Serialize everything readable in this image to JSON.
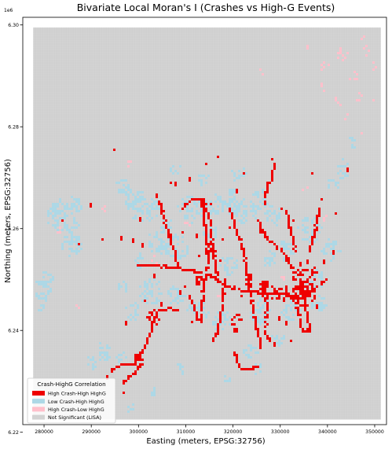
{
  "figure": {
    "title": "Bivariate Local Moran's I (Crashes vs High-G Events)",
    "xlabel": "Easting (meters, EPSG:32756)",
    "ylabel": "Northing (meters, EPSG:32756)",
    "y_offset_label": "1e6"
  },
  "legend": {
    "title": "Crash-HighG Correlation",
    "items": [
      {
        "label": "High Crash-High HighG",
        "color": "#ee0000"
      },
      {
        "label": "Low Crash-High HighG",
        "color": "#add8e6"
      },
      {
        "label": "High Crash-Low HighG",
        "color": "#ffc0cb"
      },
      {
        "label": "Not Significant (LISA)",
        "color": "#d3d3d3"
      }
    ]
  },
  "chart_data": {
    "type": "heatmap",
    "title": "Bivariate Local Moran's I (Crashes vs High-G Events)",
    "xlabel": "Easting (meters, EPSG:32756)",
    "ylabel": "Northing (meters, EPSG:32756)",
    "xlim": [
      275500,
      352500
    ],
    "ylim": [
      6.2215,
      6.3015
    ],
    "y_multiplier": "1e6",
    "xticks": [
      280000,
      290000,
      300000,
      310000,
      320000,
      330000,
      340000,
      350000
    ],
    "xtick_labels": [
      "280000",
      "290000",
      "300000",
      "310000",
      "320000",
      "330000",
      "340000",
      "350000"
    ],
    "yticks": [
      6.22,
      6.24,
      6.26,
      6.28,
      6.3
    ],
    "ytick_labels": [
      "6.22",
      "6.24",
      "6.26",
      "6.28",
      "6.30"
    ],
    "grid_extent": {
      "x": [
        277700,
        351300
      ],
      "y": [
        6.2225,
        6.2995
      ]
    },
    "legend_position": "lower-left",
    "categories": [
      {
        "name": "High Crash-High HighG",
        "color": "#ee0000"
      },
      {
        "name": "Low Crash-High HighG",
        "color": "#add8e6"
      },
      {
        "name": "High Crash-Low HighG",
        "color": "#ffc0cb"
      },
      {
        "name": "Not Significant (LISA)",
        "color": "#d3d3d3"
      }
    ],
    "high_high_paths": [
      [
        [
          299500,
          6.253
        ],
        [
          303000,
          6.253
        ],
        [
          308000,
          6.2525
        ],
        [
          313000,
          6.2515
        ],
        [
          316000,
          6.2505
        ],
        [
          318000,
          6.249
        ],
        [
          322000,
          6.248
        ],
        [
          327000,
          6.2475
        ],
        [
          333000,
          6.247
        ],
        [
          336000,
          6.2478
        ],
        [
          339500,
          6.25
        ]
      ],
      [
        [
          304200,
          6.2655
        ],
        [
          305000,
          6.2625
        ],
        [
          306200,
          6.259
        ],
        [
          307300,
          6.256
        ],
        [
          308000,
          6.253
        ]
      ],
      [
        [
          294000,
          6.2325
        ],
        [
          296500,
          6.2335
        ],
        [
          298500,
          6.2335
        ],
        [
          300300,
          6.2355
        ],
        [
          301500,
          6.2378
        ],
        [
          302500,
          6.24
        ],
        [
          303000,
          6.242
        ],
        [
          304000,
          6.244
        ],
        [
          306000,
          6.2445
        ],
        [
          308000,
          6.244
        ]
      ],
      [
        [
          296500,
          6.23
        ],
        [
          298500,
          6.2315
        ],
        [
          300500,
          6.2335
        ]
      ],
      [
        [
          309000,
          6.264
        ],
        [
          311000,
          6.266
        ],
        [
          313500,
          6.266
        ],
        [
          315000,
          6.261
        ],
        [
          315500,
          6.256
        ],
        [
          316500,
          6.251
        ]
      ],
      [
        [
          313000,
          6.266
        ],
        [
          314000,
          6.26
        ],
        [
          314500,
          6.254
        ],
        [
          313500,
          6.248
        ],
        [
          313000,
          6.242
        ]
      ],
      [
        [
          319000,
          6.264
        ],
        [
          320500,
          6.26
        ],
        [
          322000,
          6.256
        ],
        [
          323000,
          6.25
        ],
        [
          324500,
          6.242
        ],
        [
          325500,
          6.237
        ]
      ],
      [
        [
          325000,
          6.262
        ],
        [
          327000,
          6.258
        ],
        [
          330000,
          6.256
        ],
        [
          332000,
          6.253
        ],
        [
          334500,
          6.251
        ]
      ],
      [
        [
          331000,
          6.264
        ],
        [
          332000,
          6.26
        ],
        [
          333000,
          6.256
        ]
      ],
      [
        [
          334000,
          6.25
        ],
        [
          335000,
          6.246
        ],
        [
          335500,
          6.242
        ],
        [
          336000,
          6.24
        ]
      ],
      [
        [
          320000,
          6.236
        ],
        [
          321000,
          6.233
        ],
        [
          323000,
          6.2325
        ],
        [
          325000,
          6.233
        ]
      ],
      [
        [
          332500,
          6.247
        ],
        [
          333500,
          6.244
        ],
        [
          334500,
          6.24
        ],
        [
          336000,
          6.24
        ]
      ],
      [
        [
          318000,
          6.25
        ],
        [
          317500,
          6.245
        ],
        [
          316500,
          6.24
        ],
        [
          315500,
          6.238
        ]
      ],
      [
        [
          310500,
          6.247
        ],
        [
          311500,
          6.245
        ],
        [
          312500,
          6.242
        ]
      ],
      [
        [
          326000,
          6.25
        ],
        [
          327000,
          6.245
        ],
        [
          326500,
          6.24
        ],
        [
          327500,
          6.238
        ]
      ],
      [
        [
          326500,
          6.265
        ],
        [
          327000,
          6.269
        ],
        [
          328000,
          6.27
        ],
        [
          328500,
          6.273
        ]
      ],
      [
        [
          336000,
          6.256
        ],
        [
          337000,
          6.259
        ],
        [
          338000,
          6.264
        ]
      ]
    ],
    "high_high_blobs": [
      [
        335000,
        6.251,
        2500,
        0.003
      ],
      [
        334000,
        6.247,
        2000,
        0.0025
      ],
      [
        336000,
        6.248,
        1500,
        0.002
      ],
      [
        327000,
        6.248,
        2000,
        0.002
      ],
      [
        330000,
        6.2475,
        1500,
        0.002
      ],
      [
        320500,
        6.242,
        1200,
        0.002
      ],
      [
        313000,
        6.25,
        1200,
        0.0015
      ],
      [
        303000,
        6.2425,
        1500,
        0.0015
      ],
      [
        299500,
        6.235,
        1200,
        0.0012
      ],
      [
        315000,
        6.256,
        1000,
        0.0015
      ],
      [
        323000,
        6.25,
        1000,
        0.0015
      ]
    ],
    "high_high_isolated": [
      [
        294500,
        6.2755
      ],
      [
        300000,
        6.2625
      ],
      [
        310500,
        6.27
      ],
      [
        316500,
        6.2745
      ],
      [
        328000,
        6.274
      ],
      [
        322000,
        6.271
      ],
      [
        314000,
        6.273
      ],
      [
        309000,
        6.2595
      ],
      [
        338500,
        6.266
      ],
      [
        336500,
        6.271
      ],
      [
        344200,
        6.272
      ],
      [
        332500,
        6.262
      ],
      [
        292000,
        6.258
      ],
      [
        287000,
        6.257
      ],
      [
        283500,
        6.262
      ],
      [
        289500,
        6.265
      ],
      [
        306500,
        6.269
      ],
      [
        315000,
        6.265
      ],
      [
        320500,
        6.268
      ],
      [
        303500,
        6.267
      ],
      [
        300500,
        6.257
      ],
      [
        309500,
        6.249
      ],
      [
        298500,
        6.258
      ],
      [
        304500,
        6.2455
      ],
      [
        341500,
        6.263
      ],
      [
        325500,
        6.26
      ],
      [
        319000,
        6.2605
      ],
      [
        312000,
        6.259
      ],
      [
        339000,
        6.254
      ],
      [
        307500,
        6.269
      ],
      [
        317500,
        6.258
      ],
      [
        324000,
        6.243
      ],
      [
        329500,
        6.243
      ],
      [
        331000,
        6.242
      ],
      [
        296000,
        6.2585
      ],
      [
        341000,
        6.256
      ],
      [
        330000,
        6.264
      ],
      [
        312500,
        6.255
      ],
      [
        333500,
        6.249
      ],
      [
        337500,
        6.245
      ],
      [
        303000,
        6.251
      ],
      [
        311000,
        6.242
      ],
      [
        332000,
        6.238
      ],
      [
        328500,
        6.2375
      ],
      [
        306000,
        6.26
      ],
      [
        317000,
        6.254
      ],
      [
        322500,
        6.252
      ],
      [
        296500,
        6.228
      ],
      [
        293000,
        6.231
      ],
      [
        321500,
        6.247
      ],
      [
        297000,
        6.242
      ],
      [
        301000,
        6.246
      ],
      [
        308500,
        6.248
      ]
    ],
    "low_high_blobs": [
      [
        284000,
        6.2625,
        3500,
        0.0035
      ],
      [
        285500,
        6.257,
        2500,
        0.0025
      ],
      [
        280000,
        6.249,
        1800,
        0.003
      ],
      [
        279000,
        6.246,
        1200,
        0.002
      ],
      [
        301000,
        6.264,
        3500,
        0.0025
      ],
      [
        298500,
        6.2665,
        2500,
        0.002
      ],
      [
        296500,
        6.2685,
        2000,
        0.0015
      ],
      [
        302500,
        6.2475,
        2500,
        0.003
      ],
      [
        298500,
        6.244,
        1500,
        0.002
      ],
      [
        307000,
        6.2565,
        3500,
        0.0025
      ],
      [
        304000,
        6.2575,
        2500,
        0.002
      ],
      [
        311000,
        6.264,
        3000,
        0.0025
      ],
      [
        316500,
        6.265,
        3000,
        0.002
      ],
      [
        319500,
        6.2655,
        2500,
        0.0025
      ],
      [
        319000,
        6.253,
        2000,
        0.002
      ],
      [
        322500,
        6.263,
        2500,
        0.002
      ],
      [
        325500,
        6.266,
        2000,
        0.002
      ],
      [
        328500,
        6.263,
        2000,
        0.002
      ],
      [
        336000,
        6.26,
        2500,
        0.0025
      ],
      [
        340500,
        6.256,
        2000,
        0.002
      ],
      [
        338000,
        6.2455,
        1800,
        0.002
      ],
      [
        332000,
        6.244,
        2000,
        0.002
      ],
      [
        325500,
        6.244,
        2500,
        0.0025
      ],
      [
        317500,
        6.242,
        2500,
        0.002
      ],
      [
        312500,
        6.244,
        2500,
        0.002
      ],
      [
        307500,
        6.247,
        2000,
        0.002
      ],
      [
        292500,
        6.236,
        1500,
        0.002
      ],
      [
        290000,
        6.234,
        1200,
        0.0015
      ],
      [
        296000,
        6.235,
        1200,
        0.0012
      ],
      [
        323000,
        6.236,
        2000,
        0.0015
      ],
      [
        329000,
        6.2385,
        1500,
        0.0015
      ],
      [
        337500,
        6.25,
        1500,
        0.002
      ],
      [
        343000,
        6.272,
        1200,
        0.002
      ],
      [
        341000,
        6.269,
        1200,
        0.0015
      ],
      [
        345000,
        6.277,
        800,
        0.0015
      ],
      [
        321000,
        6.271,
        1500,
        0.0015
      ],
      [
        313500,
        6.27,
        1200,
        0.0015
      ],
      [
        307500,
        6.272,
        1200,
        0.0012
      ],
      [
        331000,
        6.256,
        1500,
        0.002
      ],
      [
        327500,
        6.2545,
        1500,
        0.0015
      ],
      [
        296500,
        6.249,
        1200,
        0.0012
      ],
      [
        300000,
        6.254,
        1200,
        0.0015
      ],
      [
        315000,
        6.2595,
        1500,
        0.0015
      ],
      [
        305500,
        6.2605,
        1500,
        0.0015
      ],
      [
        308500,
        6.2325,
        1000,
        0.0012
      ],
      [
        318500,
        6.231,
        1000,
        0.001
      ],
      [
        325000,
        6.2325,
        1000,
        0.0012
      ],
      [
        298000,
        6.225,
        800,
        0.001
      ],
      [
        303000,
        6.228,
        800,
        0.001
      ],
      [
        286500,
        6.265,
        1500,
        0.002
      ],
      [
        282000,
        6.264,
        1000,
        0.0015
      ]
    ],
    "high_low_blobs": [
      [
        343000,
        6.2945,
        1500,
        0.0015
      ],
      [
        339000,
        6.292,
        1000,
        0.001
      ],
      [
        345500,
        6.29,
        1000,
        0.001
      ],
      [
        346500,
        6.286,
        800,
        0.001
      ],
      [
        348000,
        6.295,
        800,
        0.001
      ],
      [
        336000,
        6.296,
        800,
        0.0008
      ],
      [
        341500,
        6.285,
        900,
        0.001
      ],
      [
        344000,
        6.282,
        800,
        0.0008
      ],
      [
        349500,
        6.292,
        700,
        0.0008
      ],
      [
        338500,
        6.288,
        700,
        0.0008
      ],
      [
        347500,
        6.2975,
        600,
        0.0008
      ],
      [
        283000,
        6.26,
        800,
        0.0008
      ],
      [
        292000,
        6.264,
        800,
        0.0008
      ],
      [
        310000,
        6.261,
        800,
        0.0008
      ],
      [
        330500,
        6.251,
        700,
        0.0008
      ],
      [
        339500,
        6.262,
        700,
        0.0008
      ],
      [
        335000,
        6.268,
        700,
        0.0008
      ],
      [
        303000,
        6.254,
        700,
        0.0008
      ],
      [
        317000,
        6.247,
        700,
        0.0008
      ],
      [
        298000,
        6.273,
        700,
        0.0008
      ],
      [
        350000,
        6.285,
        600,
        0.0008
      ],
      [
        347000,
        6.279,
        600,
        0.0008
      ],
      [
        326000,
        6.291,
        600,
        0.0008
      ],
      [
        287000,
        6.245,
        600,
        0.0008
      ]
    ]
  }
}
